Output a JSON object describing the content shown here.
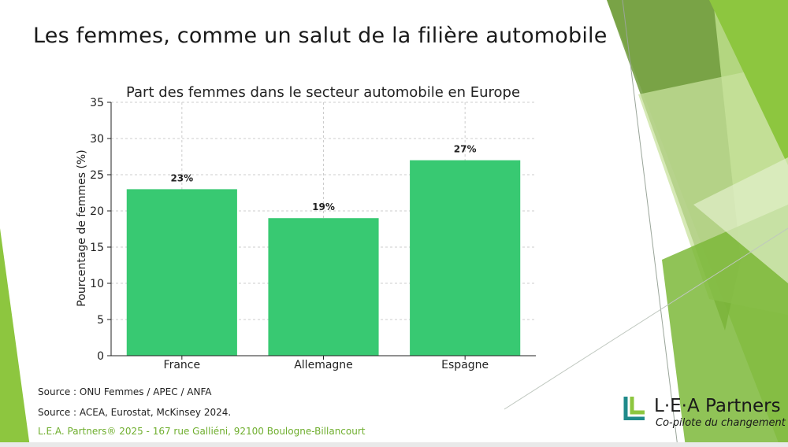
{
  "slide": {
    "title": "Les femmes, comme un salut de la filière automobile",
    "source_1": "Source : ONU Femmes / APEC / ANFA",
    "source_2": "Source : ACEA, Eurostat, McKinsey 2024.",
    "footer": "L.E.A. Partners® 2025 - 167 rue Galliéni, 92100 Boulogne-Billancourt"
  },
  "logo": {
    "name": "L·E·A Partners",
    "tagline": "Co-pilote du changement"
  },
  "colors": {
    "bar": "#38c972",
    "grid": "#cccccc",
    "accent_green": "#8dc63f",
    "dark_green": "#5b8f2a",
    "logo_teal": "#1f8a8a"
  },
  "chart_data": {
    "type": "bar",
    "title": "Part des femmes dans le secteur automobile en Europe",
    "xlabel": "",
    "ylabel": "Pourcentage de femmes (%)",
    "categories": [
      "France",
      "Allemagne",
      "Espagne"
    ],
    "values": [
      23,
      19,
      27
    ],
    "data_labels": [
      "23%",
      "19%",
      "27%"
    ],
    "ylim": [
      0,
      35
    ],
    "yticks": [
      0,
      5,
      10,
      15,
      20,
      25,
      30,
      35
    ],
    "grid": true,
    "legend": "none"
  }
}
